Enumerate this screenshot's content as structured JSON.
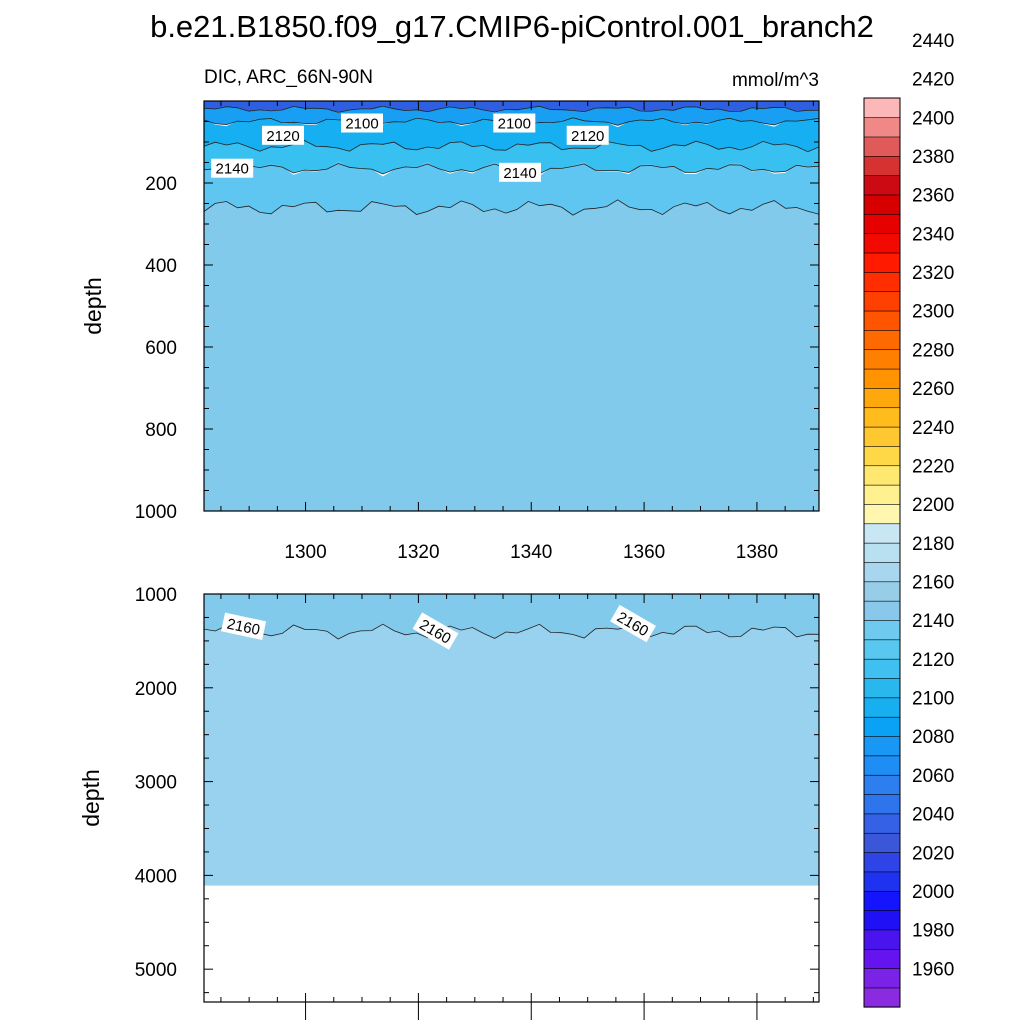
{
  "title": "b.e21.B1850.f09_g17.CMIP6-piControl.001_branch2",
  "top_panel": {
    "left_string": "DIC, ARC_66N-90N",
    "right_string": "mmol/m^3"
  },
  "colorbar": {
    "labels": [
      "1960",
      "1980",
      "2000",
      "2020",
      "2040",
      "2060",
      "2080",
      "2100",
      "2120",
      "2140",
      "2160",
      "2180",
      "2200",
      "2220",
      "2240",
      "2260",
      "2280",
      "2300",
      "2320",
      "2340",
      "2360",
      "2380",
      "2400",
      "2420",
      "2440"
    ],
    "colors": [
      "#8a2be2",
      "#7a22e6",
      "#6614ef",
      "#4a14ef",
      "#1f10f5",
      "#1414ff",
      "#1e32f0",
      "#2e44e6",
      "#3b56d8",
      "#3461e6",
      "#2e74ec",
      "#2d7ff0",
      "#1e8ef4",
      "#1898f4",
      "#0aa2f4",
      "#18aff0",
      "#28b8ee",
      "#3fc0f0",
      "#58c8f0",
      "#6fcaf0",
      "#88c8ea",
      "#98cde8",
      "#a8d6ee",
      "#b8e0f0",
      "#c8e6f4",
      "#fff7b0",
      "#fff090",
      "#ffe870",
      "#ffd848",
      "#ffc830",
      "#ffbc1c",
      "#ffa80e",
      "#ff9400",
      "#ff8000",
      "#ff6a00",
      "#ff5500",
      "#ff4000",
      "#ff2e00",
      "#ff1a00",
      "#f20a00",
      "#e60000",
      "#d60000",
      "#cc0a14",
      "#d63232",
      "#e05a5a",
      "#f08888",
      "#fcb8b8"
    ]
  },
  "chart_data": [
    {
      "type": "contour",
      "panel": "top",
      "title": "DIC, ARC_66N-90N",
      "units": "mmol/m^3",
      "xlabel": "",
      "ylabel": "depth",
      "xlim": [
        1282,
        1391
      ],
      "ylim": [
        1000,
        0
      ],
      "xticks": [
        1300,
        1320,
        1340,
        1360,
        1380
      ],
      "yticks": [
        200,
        400,
        600,
        800,
        1000
      ],
      "fill_regions": [
        {
          "from_depth": 0,
          "to_depth": 20,
          "value": 2040,
          "color": "#2d5fe0"
        },
        {
          "from_depth": 20,
          "to_depth": 50,
          "value": 2090,
          "color": "#189ff4"
        },
        {
          "from_depth": 50,
          "to_depth": 110,
          "value": 2110,
          "color": "#16b0f2"
        },
        {
          "from_depth": 110,
          "to_depth": 165,
          "value": 2130,
          "color": "#38c0f0"
        },
        {
          "from_depth": 165,
          "to_depth": 260,
          "value": 2150,
          "color": "#5ec6f0"
        },
        {
          "from_depth": 260,
          "to_depth": 1000,
          "value": 2160,
          "color": "#82caec"
        }
      ],
      "contour_labels": [
        {
          "value": "2100",
          "x": 1310,
          "depth": 55
        },
        {
          "value": "2100",
          "x": 1337,
          "depth": 55
        },
        {
          "value": "2120",
          "x": 1296,
          "depth": 85
        },
        {
          "value": "2120",
          "x": 1350,
          "depth": 85
        },
        {
          "value": "2140",
          "x": 1287,
          "depth": 165
        },
        {
          "value": "2140",
          "x": 1338,
          "depth": 175
        }
      ]
    },
    {
      "type": "contour",
      "panel": "bottom",
      "xlabel": "",
      "ylabel": "depth",
      "xlim": [
        1282,
        1391
      ],
      "ylim": [
        5350,
        1000
      ],
      "xticks": [
        1300,
        1320,
        1340,
        1360,
        1380
      ],
      "yticks": [
        1000,
        2000,
        3000,
        4000,
        5000
      ],
      "fill_regions": [
        {
          "from_depth": 1000,
          "to_depth": 1400,
          "value": 2160,
          "color": "#82caec"
        },
        {
          "from_depth": 1400,
          "to_depth": 4110,
          "value": 2165,
          "color": "#98d2ee"
        }
      ],
      "missing_below_depth": 4110,
      "contour_labels": [
        {
          "value": "2160",
          "x": 1289,
          "depth": 1350
        },
        {
          "value": "2160",
          "x": 1323,
          "depth": 1400
        },
        {
          "value": "2160",
          "x": 1358,
          "depth": 1320
        }
      ]
    }
  ]
}
